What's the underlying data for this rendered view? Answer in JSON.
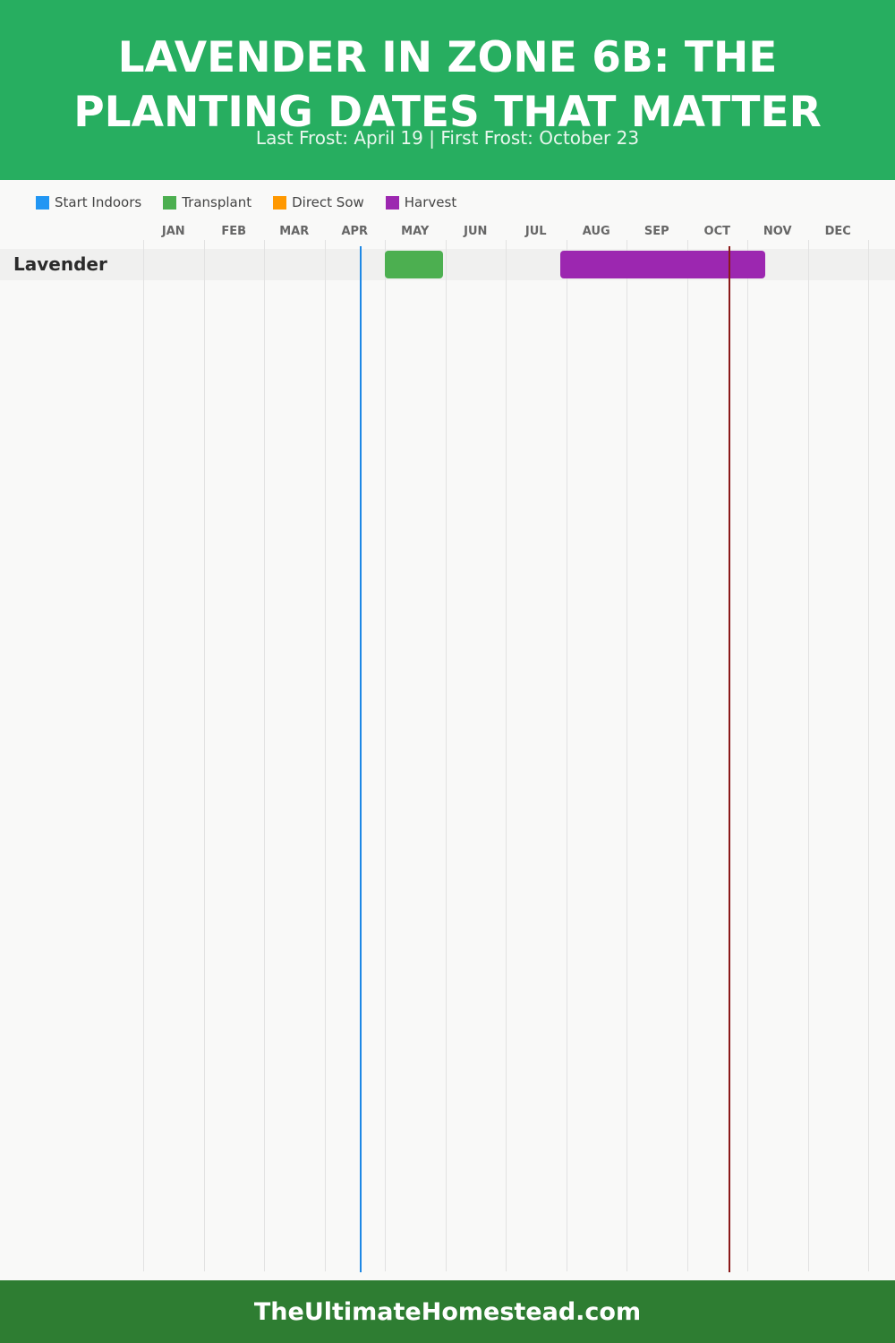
{
  "header": {
    "title": "LAVENDER IN ZONE 6B: THE PLANTING DATES THAT MATTER",
    "subtitle": "Last Frost: April 19 | First Frost: October 23",
    "background": "#27ae60"
  },
  "footer": {
    "text": "TheUltimateHomestead.com",
    "background": "#2e7d32"
  },
  "chart_data": {
    "type": "gantt",
    "title": "LAVENDER IN ZONE 6B: THE PLANTING DATES THAT MATTER",
    "subtitle": "Last Frost: April 19 | First Frost: October 23",
    "months": [
      "JAN",
      "FEB",
      "MAR",
      "APR",
      "MAY",
      "JUN",
      "JUL",
      "AUG",
      "SEP",
      "OCT",
      "NOV",
      "DEC"
    ],
    "legend": [
      {
        "name": "Start Indoors",
        "color": "#2196f3"
      },
      {
        "name": "Transplant",
        "color": "#4caf50"
      },
      {
        "name": "Direct Sow",
        "color": "#ff9800"
      },
      {
        "name": "Harvest",
        "color": "#9c27b0"
      }
    ],
    "rows": [
      {
        "name": "Lavender",
        "bars": [
          {
            "activity": "Transplant",
            "start": "05-01",
            "end": "05-31",
            "color": "#4caf50"
          },
          {
            "activity": "Harvest",
            "start": "07-29",
            "end": "11-10",
            "color": "#9c27b0"
          }
        ]
      }
    ],
    "markers": [
      {
        "name": "Last Frost",
        "date": "04-19",
        "color": "#1e88e5"
      },
      {
        "name": "First Frost",
        "date": "10-23",
        "color": "#8b1a1a"
      }
    ],
    "grid": true,
    "legend_position": "top-left"
  }
}
